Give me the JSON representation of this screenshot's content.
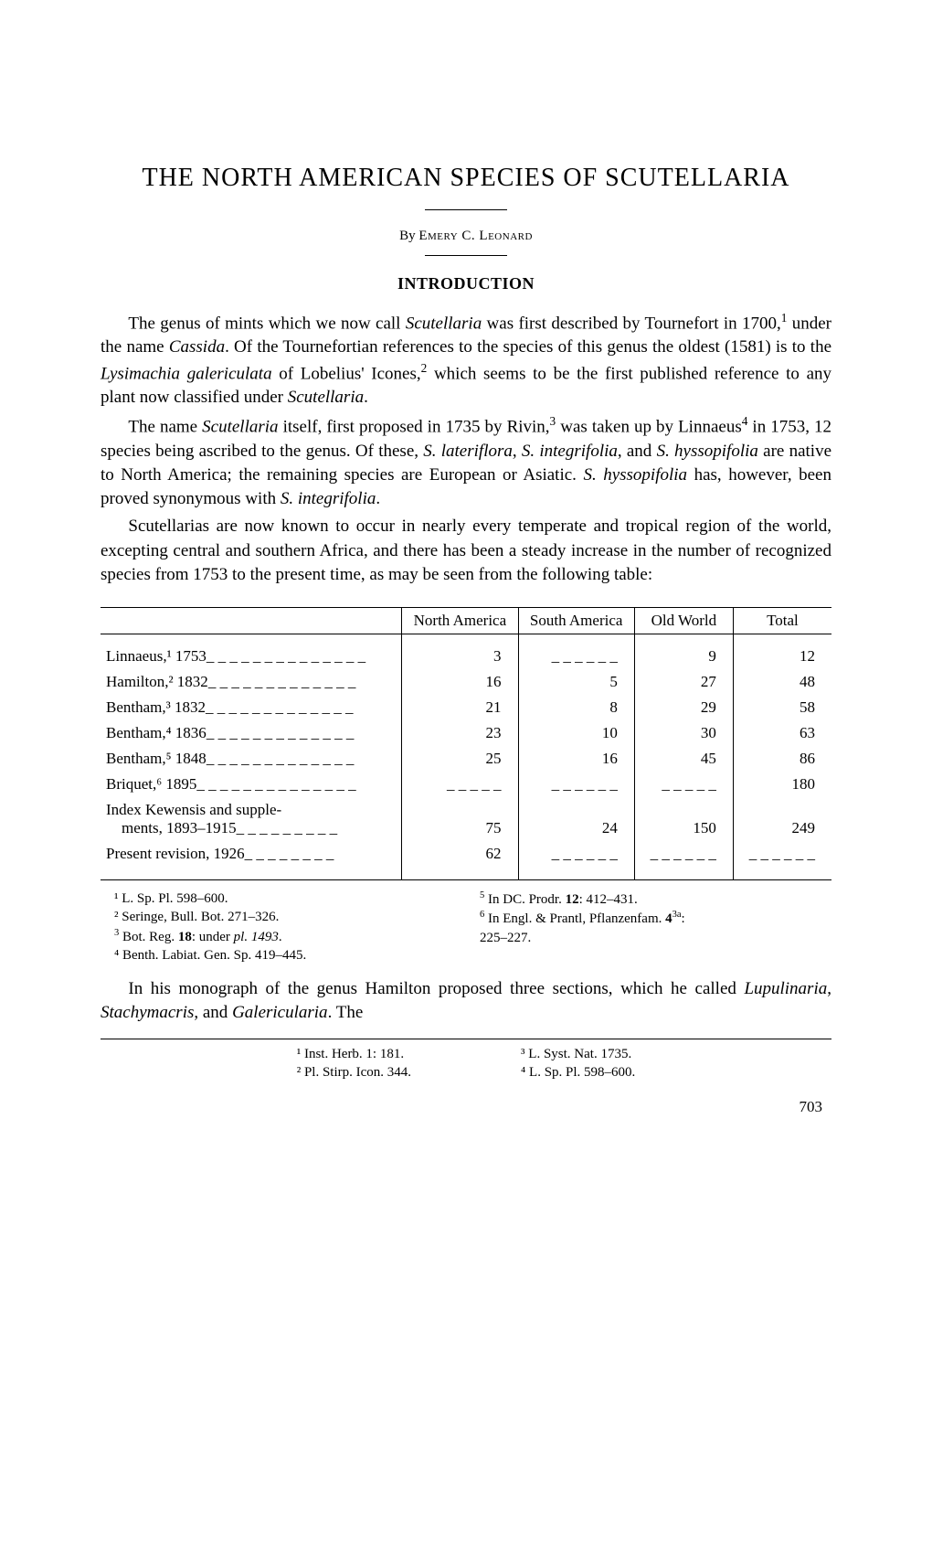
{
  "title": "THE NORTH AMERICAN SPECIES OF SCUTELLARIA",
  "byline_by": "By",
  "byline_author": "Emery C. Leonard",
  "section_heading": "INTRODUCTION",
  "paragraphs": {
    "p1": "The genus of mints which we now call Scutellaria was first described by Tournefort in 1700,¹ under the name Cassida. Of the Tournefortian references to the species of this genus the oldest (1581) is to the Lysimachia galericulata of Lobelius' Icones,² which seems to be the first published reference to any plant now classified under Scutellaria.",
    "p2": "The name Scutellaria itself, first proposed in 1735 by Rivin,³ was taken up by Linnaeus⁴ in 1753, 12 species being ascribed to the genus. Of these, S. lateriflora, S. integrifolia, and S. hyssopifolia are native to North America; the remaining species are European or Asiatic. S. hyssopifolia has, however, been proved synonymous with S. integrifolia.",
    "p3": "Scutellarias are now known to occur in nearly every temperate and tropical region of the world, excepting central and southern Africa, and there has been a steady increase in the number of recognized species from 1753 to the present time, as may be seen from the following table:",
    "p4": "In his monograph of the genus Hamilton proposed three sections, which he called Lupulinaria, Stachymacris, and Galericularia. The"
  },
  "table": {
    "columns": [
      "",
      "North America",
      "South America",
      "Old World",
      "Total"
    ],
    "rows": [
      {
        "label": "Linnaeus,¹ 1753",
        "na": "3",
        "sa": "",
        "ow": "9",
        "tot": "12"
      },
      {
        "label": "Hamilton,² 1832",
        "na": "16",
        "sa": "5",
        "ow": "27",
        "tot": "48"
      },
      {
        "label": "Bentham,³ 1832",
        "na": "21",
        "sa": "8",
        "ow": "29",
        "tot": "58"
      },
      {
        "label": "Bentham,⁴ 1836",
        "na": "23",
        "sa": "10",
        "ow": "30",
        "tot": "63"
      },
      {
        "label": "Bentham,⁵ 1848",
        "na": "25",
        "sa": "16",
        "ow": "45",
        "tot": "86"
      },
      {
        "label": "Briquet,⁶ 1895",
        "na": "",
        "sa": "",
        "ow": "",
        "tot": "180"
      },
      {
        "label": "Index Kewensis and supplements, 1893–1915",
        "na": "75",
        "sa": "24",
        "ow": "150",
        "tot": "249"
      },
      {
        "label": "Present revision, 1926",
        "na": "62",
        "sa": "",
        "ow": "",
        "tot": ""
      }
    ]
  },
  "table_footnotes": {
    "left": [
      "¹ L. Sp. Pl. 598–600.",
      "² Seringe, Bull. Bot. 271–326.",
      "³ Bot. Reg. 18: under pl. 1493.",
      "⁴ Benth. Labiat. Gen. Sp. 419–445."
    ],
    "right": [
      "⁵ In DC. Prodr. 12: 412–431.",
      "⁶ In Engl. & Prantl, Pflanzenfam. 4³ᵃ: 225–227."
    ]
  },
  "page_footnotes": {
    "left": [
      "¹ Inst. Herb. 1: 181.",
      "² Pl. Stirp. Icon. 344."
    ],
    "right": [
      "³ L. Syst. Nat. 1735.",
      "⁴ L. Sp. Pl. 598–600."
    ]
  },
  "page_number": "703"
}
